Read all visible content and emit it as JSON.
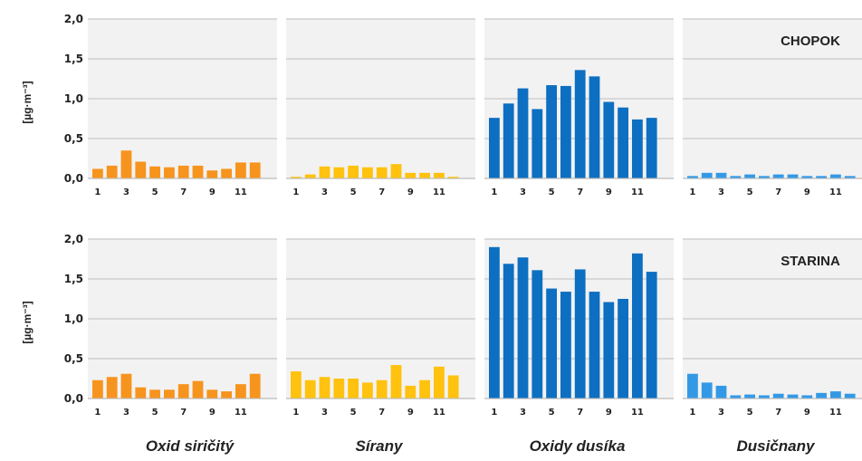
{
  "chart_data": {
    "type": "bar",
    "categories": [
      "1",
      "2",
      "3",
      "4",
      "5",
      "6",
      "7",
      "8",
      "9",
      "10",
      "11",
      "12"
    ],
    "x_tick_labels": [
      "1",
      "3",
      "5",
      "7",
      "9",
      "11"
    ],
    "ylim": [
      0,
      2.0
    ],
    "y_ticks": [
      "0,0",
      "0,5",
      "1,0",
      "1,5",
      "2,0"
    ],
    "ylabel": "[µg·m⁻³]",
    "grid": true,
    "pollutants": [
      {
        "name": "Oxid siričitý",
        "color": "#f7941d"
      },
      {
        "name": "Sírany",
        "color": "#ffc20e"
      },
      {
        "name": "Oxidy dusíka",
        "color": "#0d6fc1"
      },
      {
        "name": "Dusičnany",
        "color": "#3399e6"
      }
    ],
    "stations": [
      {
        "name": "CHOPOK",
        "series": [
          {
            "values": [
              0.12,
              0.16,
              0.35,
              0.21,
              0.15,
              0.14,
              0.16,
              0.16,
              0.1,
              0.12,
              0.2,
              0.2
            ]
          },
          {
            "values": [
              0.02,
              0.05,
              0.15,
              0.14,
              0.16,
              0.14,
              0.14,
              0.18,
              0.07,
              0.07,
              0.07,
              0.02
            ]
          },
          {
            "values": [
              0.76,
              0.94,
              1.13,
              0.87,
              1.17,
              1.16,
              1.36,
              1.28,
              0.96,
              0.89,
              0.74,
              0.76
            ]
          },
          {
            "values": [
              0.03,
              0.07,
              0.07,
              0.03,
              0.05,
              0.03,
              0.05,
              0.05,
              0.03,
              0.03,
              0.05,
              0.03
            ]
          }
        ]
      },
      {
        "name": "STARINA",
        "series": [
          {
            "values": [
              0.23,
              0.27,
              0.31,
              0.14,
              0.11,
              0.11,
              0.18,
              0.22,
              0.11,
              0.09,
              0.18,
              0.31
            ]
          },
          {
            "values": [
              0.34,
              0.23,
              0.27,
              0.25,
              0.25,
              0.2,
              0.23,
              0.42,
              0.16,
              0.23,
              0.4,
              0.29
            ]
          },
          {
            "values": [
              1.9,
              1.69,
              1.77,
              1.61,
              1.38,
              1.34,
              1.62,
              1.34,
              1.21,
              1.25,
              1.82,
              1.59
            ]
          },
          {
            "values": [
              0.31,
              0.2,
              0.16,
              0.04,
              0.05,
              0.04,
              0.06,
              0.05,
              0.04,
              0.07,
              0.09,
              0.06
            ]
          }
        ]
      }
    ]
  }
}
